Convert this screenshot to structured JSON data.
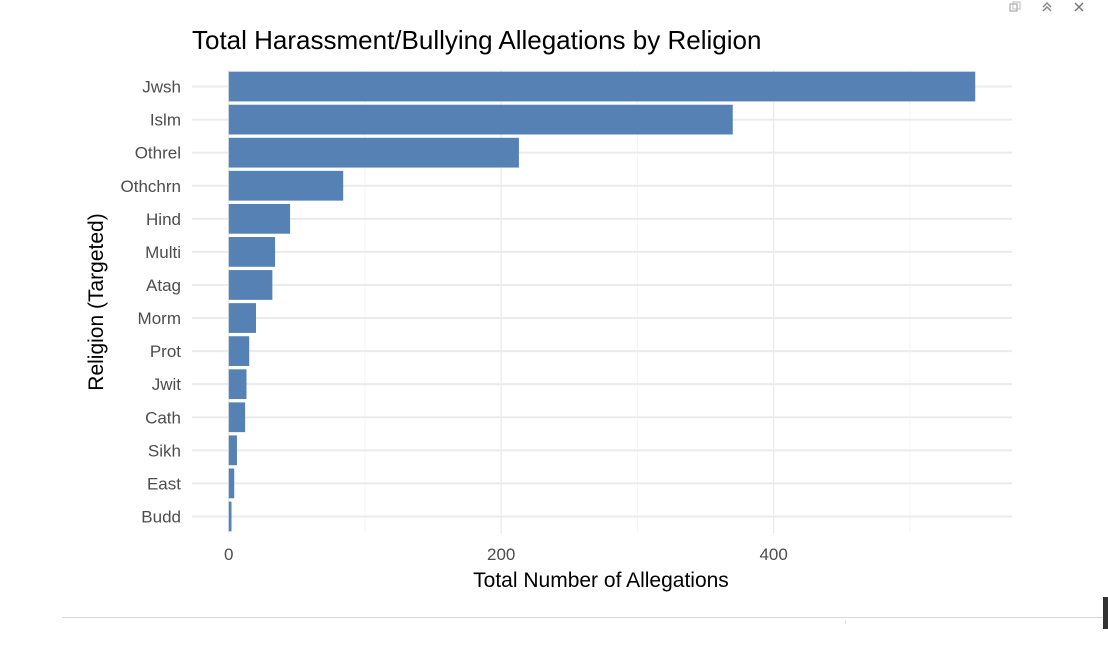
{
  "chart_data": {
    "type": "bar",
    "orientation": "horizontal",
    "title": "Total Harassment/Bullying Allegations by Religion",
    "xlabel": "Total Number of Allegations",
    "ylabel": "Religion (Targeted)",
    "categories": [
      "Jwsh",
      "Islm",
      "Othrel",
      "Othchrn",
      "Hind",
      "Multi",
      "Atag",
      "Morm",
      "Prot",
      "Jwit",
      "Cath",
      "Sikh",
      "East",
      "Budd"
    ],
    "values": [
      548,
      370,
      213,
      84,
      45,
      34,
      32,
      20,
      15,
      13,
      12,
      6,
      4,
      2
    ],
    "xlim": [
      -27,
      575
    ],
    "xticks": [
      0,
      200,
      400
    ],
    "grid": true,
    "bar_color": "#5681b4"
  },
  "colors": {
    "bar": "#5681b4",
    "grid_major": "#ebebeb",
    "grid_minor": "#f4f4f4",
    "tick_text": "#4d4d4d",
    "title_text": "#000000"
  },
  "window_controls": {
    "icons": [
      "restore-icon",
      "collapse-icon",
      "close-icon"
    ]
  }
}
